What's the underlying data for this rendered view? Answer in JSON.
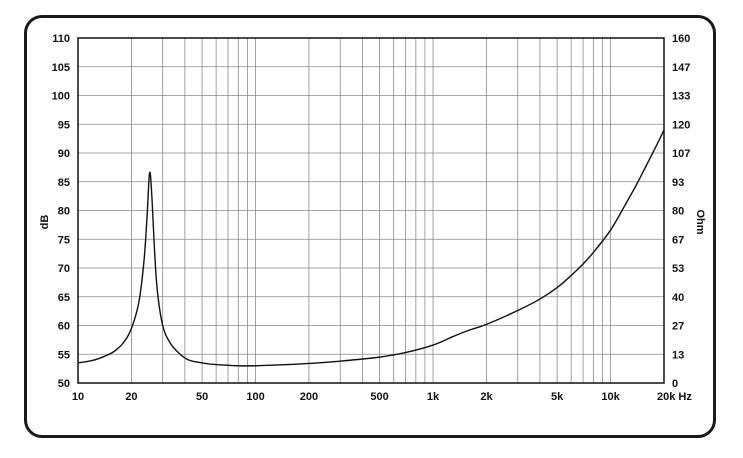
{
  "chart_data": {
    "type": "line",
    "xscale": "log",
    "xlim": [
      10,
      20000
    ],
    "ylim": [
      50,
      110
    ],
    "y2lim": [
      0,
      160
    ],
    "ylabel": "dB",
    "y2label": "Ohm",
    "grid": true,
    "x_ticks": [
      {
        "value": 10,
        "label": "10"
      },
      {
        "value": 20,
        "label": "20"
      },
      {
        "value": 50,
        "label": "50"
      },
      {
        "value": 100,
        "label": "100"
      },
      {
        "value": 200,
        "label": "200"
      },
      {
        "value": 500,
        "label": "500"
      },
      {
        "value": 1000,
        "label": "1k"
      },
      {
        "value": 2000,
        "label": "2k"
      },
      {
        "value": 5000,
        "label": "5k"
      },
      {
        "value": 10000,
        "label": "10k"
      },
      {
        "value": 20000,
        "label": "20k Hz"
      }
    ],
    "y_ticks": [
      "110",
      "105",
      "100",
      "95",
      "90",
      "85",
      "80",
      "75",
      "70",
      "65",
      "60",
      "55",
      "50"
    ],
    "y2_ticks": [
      "160",
      "147",
      "133",
      "120",
      "107",
      "93",
      "80",
      "67",
      "53",
      "40",
      "27",
      "13",
      "0"
    ],
    "series": [
      {
        "x": [
          10,
          12,
          14,
          16,
          18,
          20,
          22,
          23.5,
          24.5,
          25.3,
          26,
          27,
          28,
          30,
          33,
          37,
          42,
          50,
          60,
          80,
          100,
          150,
          200,
          300,
          500,
          700,
          1000,
          1300,
          1600,
          2000,
          3000,
          4000,
          5000,
          6000,
          7000,
          8000,
          10000,
          12000,
          14000,
          16000,
          18000,
          20000
        ],
        "y": [
          53.5,
          53.9,
          54.6,
          55.5,
          57.0,
          59.5,
          64.0,
          71.0,
          79.0,
          86.5,
          83.0,
          73.0,
          66.0,
          60.0,
          57.0,
          55.2,
          54.0,
          53.5,
          53.2,
          53.0,
          53.0,
          53.2,
          53.4,
          53.8,
          54.5,
          55.3,
          56.6,
          58.1,
          59.2,
          60.2,
          62.6,
          64.6,
          66.6,
          68.7,
          70.7,
          72.7,
          76.6,
          80.8,
          84.5,
          88.0,
          91.1,
          94.0
        ]
      }
    ]
  }
}
